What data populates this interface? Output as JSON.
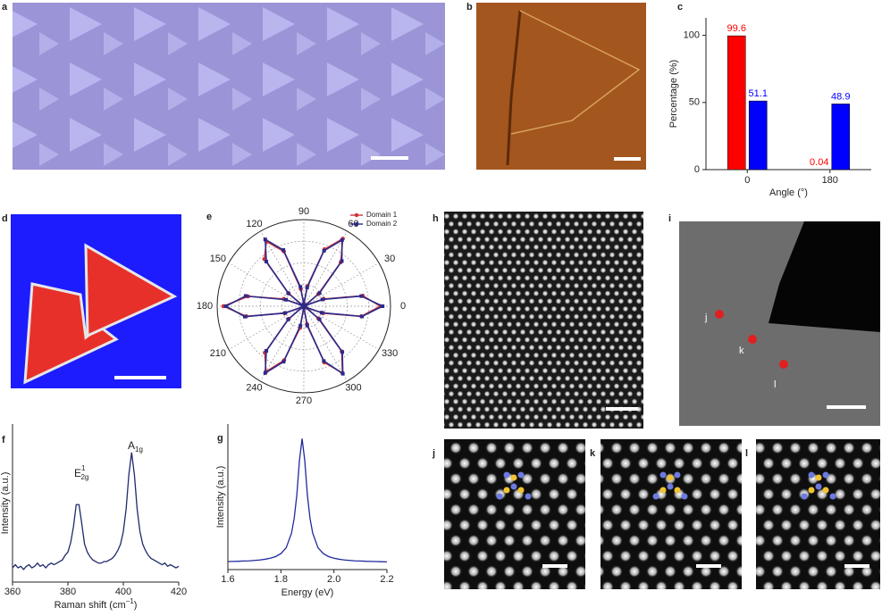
{
  "panel_labels": [
    "a",
    "b",
    "d",
    "h",
    "i",
    "j",
    "k",
    "l"
  ],
  "inset_labels": [
    "j",
    "k",
    "l"
  ],
  "chart_data": [
    {
      "type": "bar",
      "panel": "c",
      "ylabel": "Percentage (%)",
      "xlabel": "Angle (°)",
      "categories": [
        "0",
        "180"
      ],
      "series": [
        {
          "color": "#ff0000",
          "values": [
            99.6,
            0.04
          ]
        },
        {
          "color": "#0000ff",
          "values": [
            51.1,
            48.9
          ]
        }
      ],
      "ylim": [
        0,
        113
      ],
      "yticks": [
        0,
        50,
        100
      ]
    },
    {
      "type": "polar",
      "panel": "e",
      "legend": "upper right",
      "x": [
        0,
        10,
        20,
        30,
        40,
        50,
        60,
        70,
        80,
        90,
        100,
        110,
        120,
        130,
        140,
        150,
        160,
        170,
        180,
        190,
        200,
        210,
        220,
        230,
        240,
        250,
        260,
        270,
        280,
        290,
        300,
        310,
        320,
        330,
        340,
        350
      ],
      "series": [
        {
          "name": "Domain 1",
          "color": "#d0303a",
          "values": [
            0.97,
            0.76,
            0.27,
            0.02,
            0.24,
            0.73,
            0.99,
            0.77,
            0.26,
            0.03,
            0.22,
            0.74,
            0.95,
            0.78,
            0.25,
            0.02,
            0.27,
            0.72,
            1.02,
            0.74,
            0.26,
            0.01,
            0.25,
            0.77,
            0.96,
            0.73,
            0.28,
            0.02,
            0.23,
            0.76,
            0.98,
            0.75,
            0.24,
            0.03,
            0.26,
            0.74
          ]
        },
        {
          "name": "Domain 2",
          "color": "#2a2a8a",
          "values": [
            1.0,
            0.74,
            0.25,
            0.01,
            0.26,
            0.75,
            0.97,
            0.75,
            0.24,
            0.02,
            0.25,
            0.76,
            0.98,
            0.74,
            0.26,
            0.01,
            0.24,
            0.75,
            0.99,
            0.76,
            0.25,
            0.02,
            0.26,
            0.74,
            0.98,
            0.75,
            0.25,
            0.01,
            0.25,
            0.74,
            0.99,
            0.76,
            0.26,
            0.02,
            0.24,
            0.75
          ]
        }
      ],
      "rlim": [
        0,
        1.1
      ],
      "rticks": [
        0.275,
        0.55,
        0.825
      ],
      "xticks": [
        0,
        30,
        60,
        90,
        120,
        150,
        180,
        210,
        240,
        270,
        300,
        330
      ]
    },
    {
      "type": "line",
      "panel": "f",
      "ylabel": "Intensity (a.u.)",
      "xlabel": {
        "text": "Raman shift (cm",
        "sup": "−1",
        "end": ")"
      },
      "annotations": [
        {
          "text": "E",
          "sup": "1",
          "sub": "2g"
        },
        {
          "text": "A",
          "sub": "1g"
        }
      ],
      "x": [
        360,
        361,
        362,
        363,
        364,
        365,
        366,
        367,
        368,
        369,
        370,
        371,
        372,
        373,
        374,
        375,
        376,
        377,
        378,
        379,
        380,
        381,
        382,
        383,
        384,
        385,
        386,
        387,
        388,
        389,
        390,
        391,
        392,
        393,
        394,
        395,
        396,
        397,
        398,
        399,
        400,
        401,
        402,
        403,
        404,
        405,
        406,
        407,
        408,
        409,
        410,
        411,
        412,
        413,
        414,
        415,
        416,
        417,
        418,
        419,
        420
      ],
      "series": [
        {
          "color": "#1f2a6b",
          "values": [
            9,
            11,
            9,
            10,
            8,
            10,
            11,
            9,
            10,
            12,
            10,
            11,
            9,
            11,
            12,
            11,
            12,
            13,
            14,
            17,
            19,
            25,
            35,
            49,
            49,
            37,
            24,
            19,
            16,
            14,
            13,
            12,
            12,
            13,
            13,
            14,
            15,
            17,
            20,
            24,
            32,
            46,
            68,
            82,
            68,
            46,
            32,
            24,
            20,
            17,
            15,
            14,
            13,
            12,
            11,
            12,
            10,
            11,
            10,
            9,
            10
          ]
        }
      ],
      "xlim": [
        360,
        420
      ],
      "xticks": [
        360,
        380,
        400,
        420
      ],
      "ylim": [
        0,
        100
      ]
    },
    {
      "type": "line",
      "panel": "g",
      "ylabel": "Intensity (a.u.)",
      "xlabel": "Energy (eV)",
      "x": [
        1.6,
        1.62,
        1.64,
        1.66,
        1.68,
        1.7,
        1.72,
        1.74,
        1.76,
        1.78,
        1.8,
        1.82,
        1.84,
        1.85,
        1.86,
        1.87,
        1.88,
        1.89,
        1.9,
        1.91,
        1.92,
        1.94,
        1.96,
        1.98,
        2.0,
        2.02,
        2.04,
        2.06,
        2.08,
        2.1,
        2.12,
        2.14,
        2.16,
        2.18,
        2.2
      ],
      "series": [
        {
          "color": "#1f2a9b",
          "values": [
            5.5,
            5.6,
            5.7,
            5.9,
            6,
            6.3,
            6.6,
            7.1,
            7.8,
            8.9,
            11,
            15,
            25,
            35,
            51,
            75,
            90,
            75,
            51,
            35,
            25,
            15,
            11,
            8.9,
            7.8,
            7.1,
            6.6,
            6.3,
            6,
            5.9,
            5.7,
            5.6,
            5.5,
            5.4,
            5.3
          ]
        }
      ],
      "xlim": [
        1.6,
        2.2
      ],
      "xticks": [
        1.6,
        1.8,
        {
          "value": 2,
          "label": "2.0"
        },
        2.2
      ],
      "ylim": [
        0,
        100
      ]
    }
  ]
}
